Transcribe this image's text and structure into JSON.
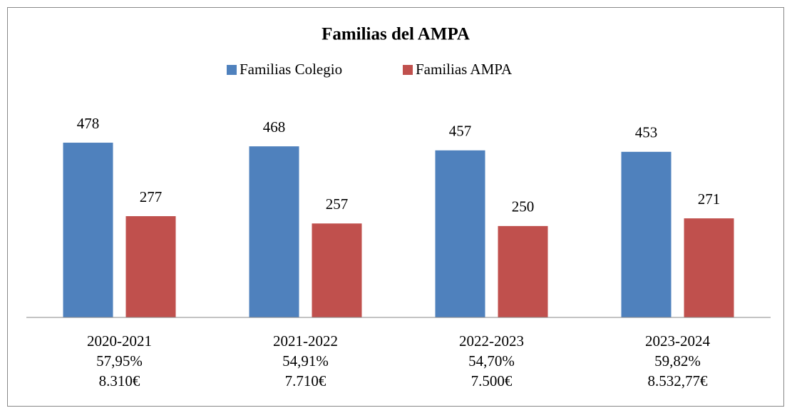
{
  "chart_data": {
    "type": "bar",
    "title": "Familias del AMPA",
    "categories": [
      [
        "2020-2021",
        "57,95%",
        "8.310€"
      ],
      [
        "2021-2022",
        "54,91%",
        "7.710€"
      ],
      [
        "2022-2023",
        "54,70%",
        "7.500€"
      ],
      [
        "2023-2024",
        "59,82%",
        "8.532,77€"
      ]
    ],
    "series": [
      {
        "name": "Familias Colegio",
        "color": "#4f81bd",
        "values": [
          478,
          468,
          457,
          453
        ]
      },
      {
        "name": "Familias AMPA",
        "color": "#c0504d",
        "values": [
          277,
          257,
          250,
          271
        ]
      }
    ],
    "ylim": [
      0,
      600
    ],
    "legend": "top"
  }
}
